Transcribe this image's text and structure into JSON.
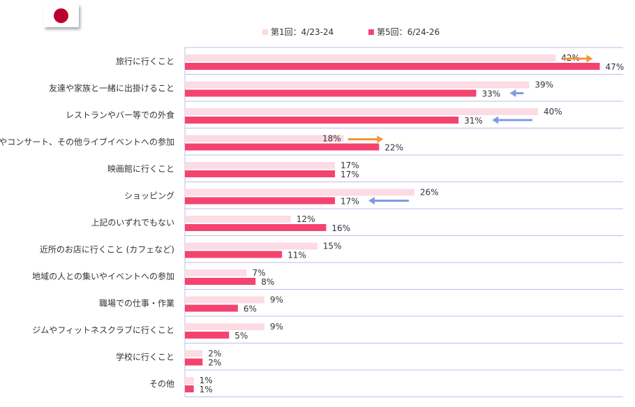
{
  "flag": {
    "name": "japan-flag",
    "color": "#bc002d"
  },
  "colors": {
    "round1": "#fcdbe4",
    "round5": "#f4436f",
    "arrow_up": "#f4953a",
    "arrow_down": "#7f9be6",
    "axis": "#bcbce8"
  },
  "chart_data": {
    "type": "bar",
    "orientation": "horizontal",
    "xlim": [
      0,
      50
    ],
    "categories": [
      "旅行に行くこと",
      "友達や家族と一緒に出掛けること",
      "レストランやバー等での外食",
      "スポーツやコンサート、その他ライブイベントへの参加",
      "映画館に行くこと",
      "ショッピング",
      "上記のいずれでもない",
      "近所のお店に行くこと (カフェなど)",
      "地域の人との集いやイベントへの参加",
      "職場での仕事・作業",
      "ジムやフィットネスクラブに行くこと",
      "学校に行くこと",
      "その他"
    ],
    "series": [
      {
        "name": "第1回：4/23-24",
        "values": [
          42,
          39,
          40,
          18,
          17,
          26,
          12,
          15,
          7,
          9,
          9,
          2,
          1
        ]
      },
      {
        "name": "第5回：6/24-26",
        "values": [
          47,
          33,
          31,
          22,
          17,
          17,
          16,
          11,
          8,
          6,
          5,
          2,
          1
        ]
      }
    ],
    "value_labels": [
      [
        "42%",
        "39%",
        "40%",
        "18%",
        "17%",
        "26%",
        "12%",
        "15%",
        "7%",
        "9%",
        "9%",
        "2%",
        "1%"
      ],
      [
        "47%",
        "33%",
        "31%",
        "22%",
        "17%",
        "17%",
        "16%",
        "11%",
        "8%",
        "6%",
        "5%",
        "2%",
        "1%"
      ]
    ],
    "change_arrows": [
      "up",
      "down",
      "down",
      "up",
      null,
      "down",
      null,
      null,
      null,
      null,
      null,
      null,
      null
    ],
    "legend_position": "top"
  }
}
